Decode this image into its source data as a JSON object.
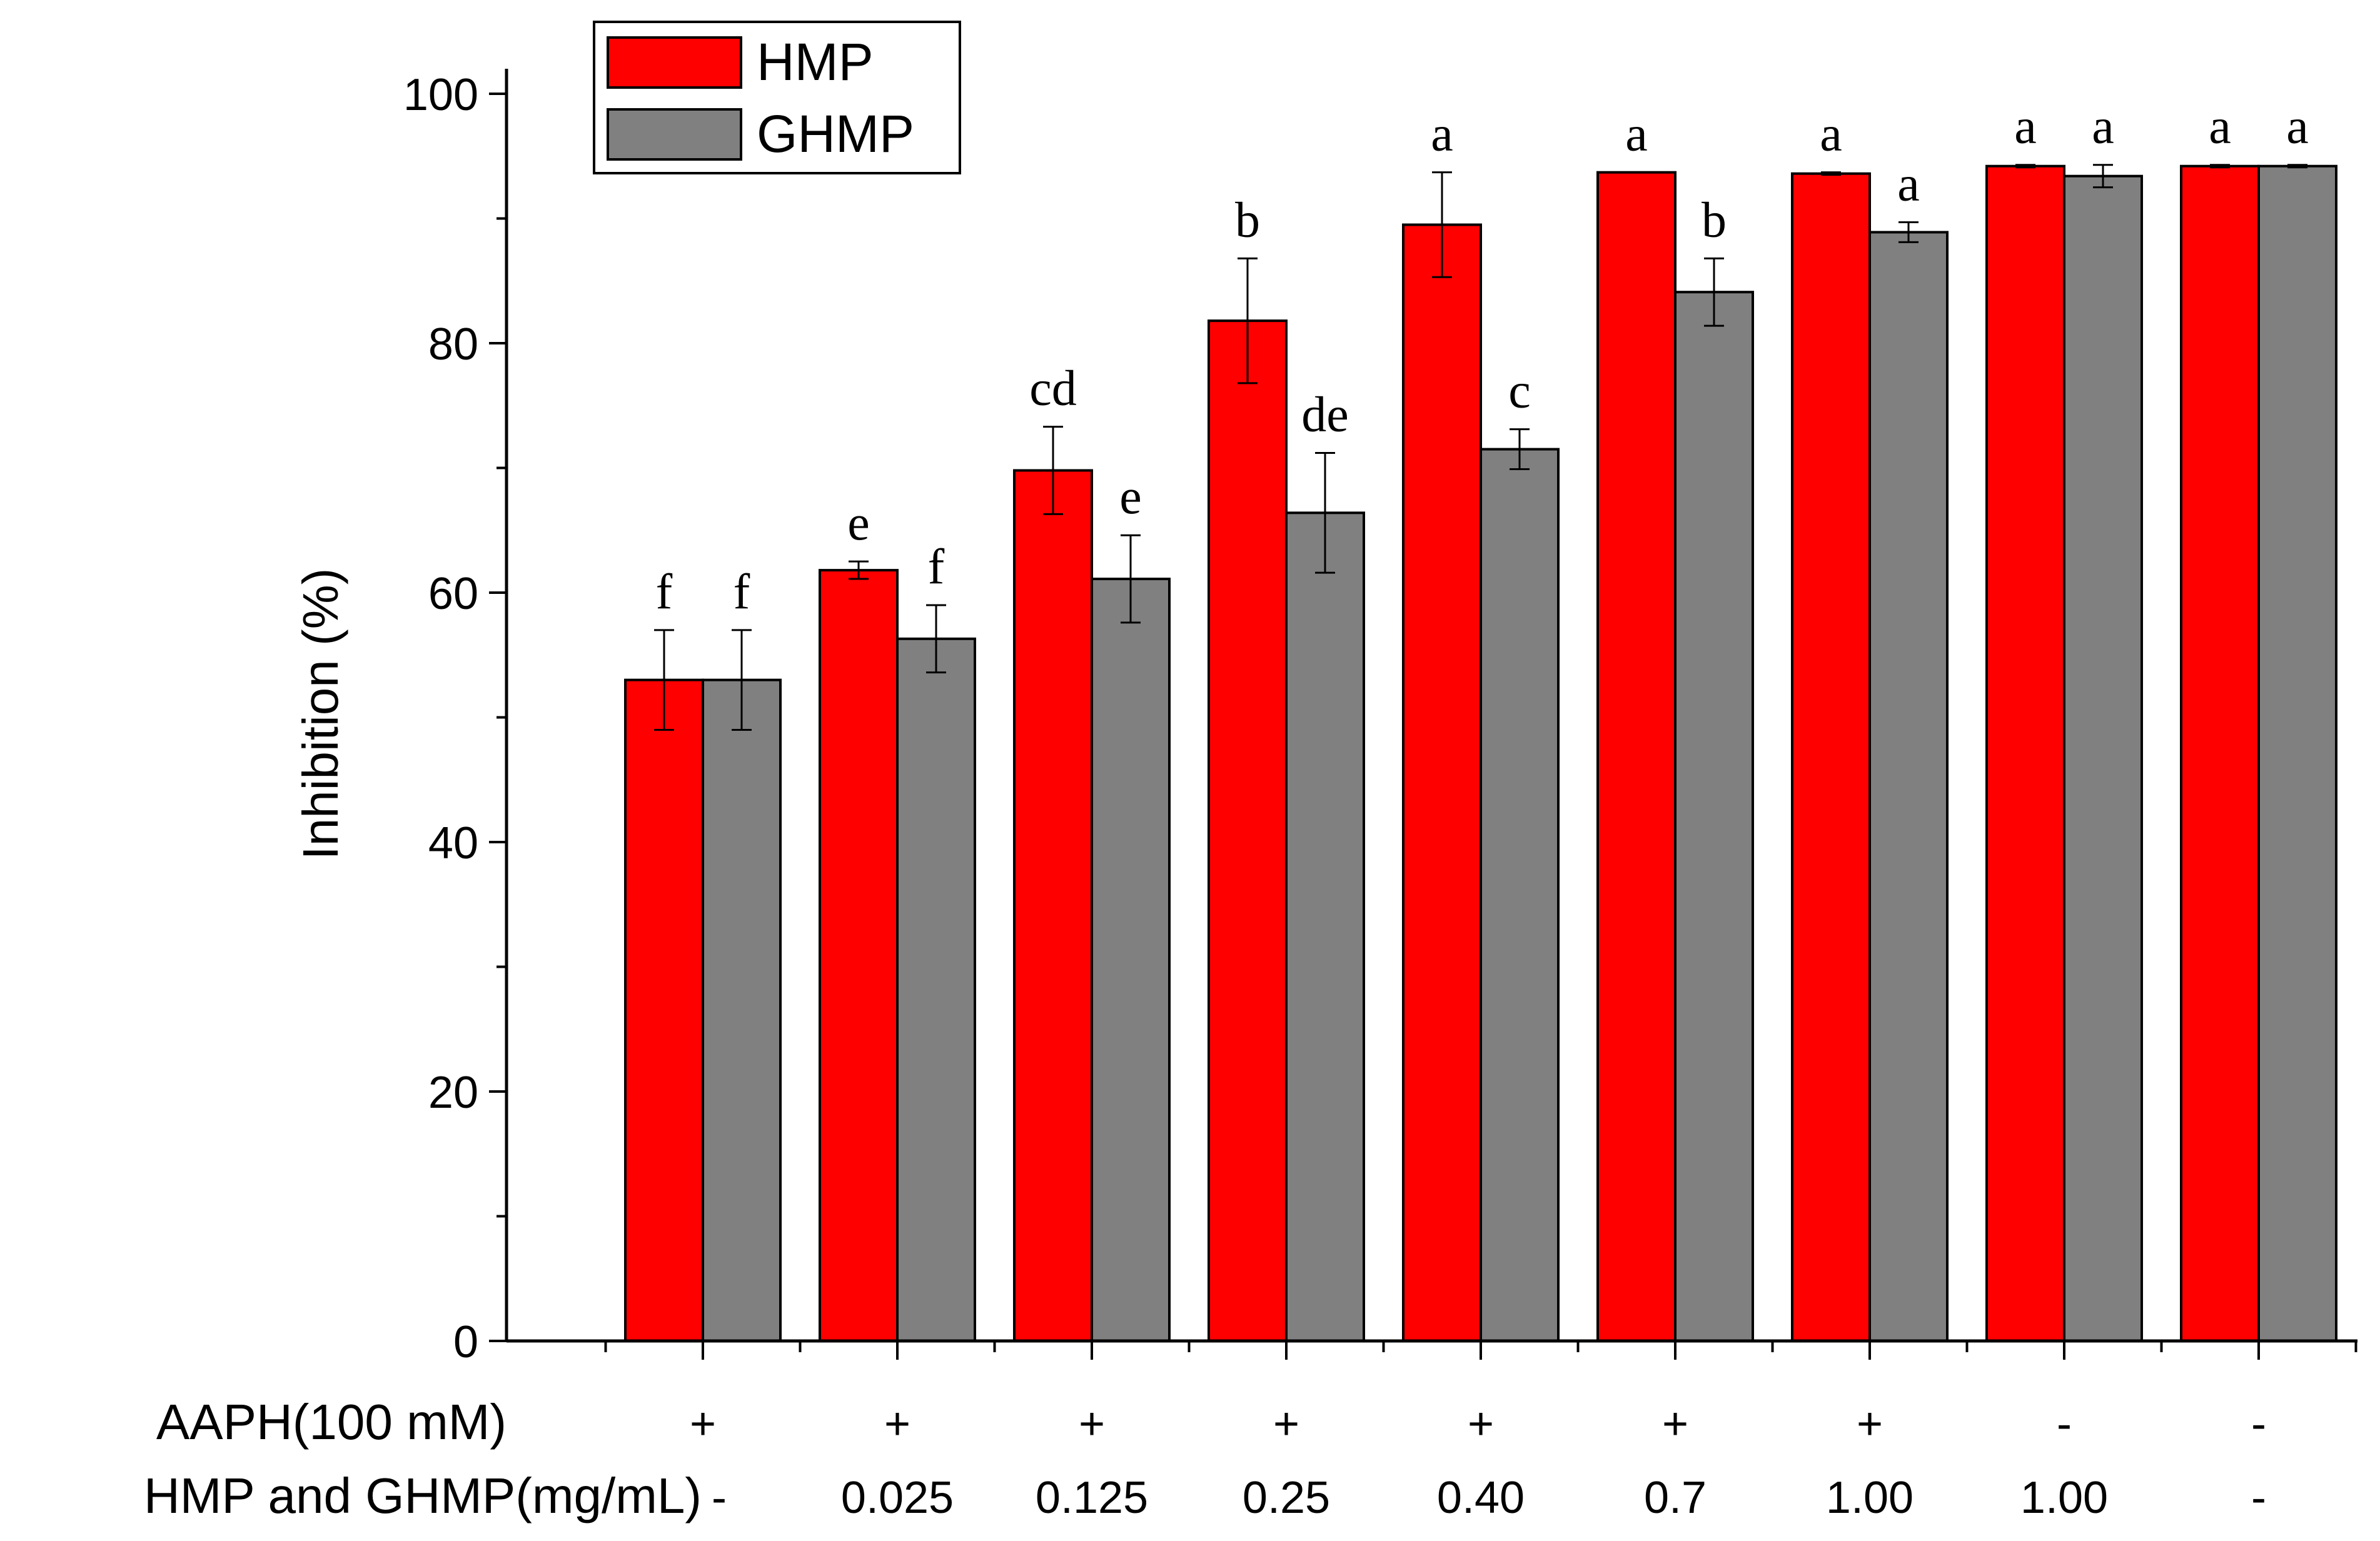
{
  "chart_data": {
    "type": "bar",
    "ylabel": "Inhibition (%)",
    "ylim": [
      0,
      100
    ],
    "yticks": [
      0,
      20,
      40,
      60,
      80,
      100
    ],
    "grid": false,
    "legend_position": "top-left",
    "series": [
      {
        "name": "HMP",
        "color": "#ff0000",
        "values": [
          53.0,
          61.8,
          69.8,
          81.8,
          89.5,
          93.7,
          93.6,
          94.2,
          94.2
        ],
        "errors": [
          4.0,
          0.7,
          3.5,
          5.0,
          4.2,
          0.0,
          0.1,
          0.1,
          0.1
        ],
        "letters": [
          "f",
          "e",
          "cd",
          "b",
          "a",
          "a",
          "a",
          "a",
          "a"
        ]
      },
      {
        "name": "GHMP",
        "color": "#808080",
        "values": [
          53.0,
          56.3,
          61.1,
          66.4,
          71.5,
          84.1,
          88.9,
          93.4,
          94.2
        ],
        "errors": [
          4.0,
          2.7,
          3.5,
          4.8,
          1.6,
          2.7,
          0.8,
          0.9,
          0.1
        ],
        "letters": [
          "f",
          "f",
          "e",
          "de",
          "c",
          "b",
          "a",
          "a",
          "a"
        ]
      }
    ],
    "conditions": {
      "rows": [
        {
          "label": "AAPH(100 mM)",
          "values": [
            "+",
            "+",
            "+",
            "+",
            "+",
            "+",
            "+",
            "-",
            "-"
          ]
        },
        {
          "label": "HMP and GHMP(mg/mL)",
          "values": [
            "-",
            "0.025",
            "0.125",
            "0.25",
            "0.40",
            "0.7",
            "1.00",
            "1.00",
            "-"
          ]
        }
      ]
    }
  }
}
